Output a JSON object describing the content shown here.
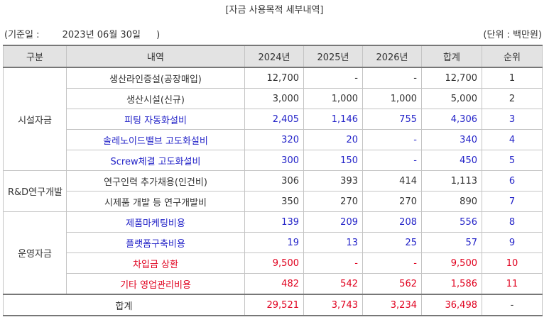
{
  "title": "[자금 사용목적 세부내역]",
  "reference": {
    "label": "(기준일 :",
    "date": "2023년 06월 30일",
    "close": ")"
  },
  "unit": "(단위 : 백만원)",
  "headers": [
    "구분",
    "내역",
    "2024년",
    "2025년",
    "2026년",
    "합계",
    "순위"
  ],
  "rows": [
    {
      "category": "시설자금",
      "item": "생산라인증설(공장매입)",
      "y2024": "12,700",
      "y2025": "-",
      "y2026": "-",
      "total": "12,700",
      "rank": "1",
      "style": "plain"
    },
    {
      "item": "생산시설(신규)",
      "y2024": "3,000",
      "y2025": "1,000",
      "y2026": "1,000",
      "total": "5,000",
      "rank": "2",
      "style": "plain"
    },
    {
      "item": "피팅 자동화설비",
      "y2024": "2,405",
      "y2025": "1,146",
      "y2026": "755",
      "total": "4,306",
      "rank": "3",
      "style": "blue"
    },
    {
      "item": "솔레노이드밸브 고도화설비",
      "y2024": "320",
      "y2025": "20",
      "y2026": "-",
      "total": "340",
      "rank": "4",
      "style": "blue"
    },
    {
      "item": "Screw체결 고도화설비",
      "y2024": "300",
      "y2025": "150",
      "y2026": "-",
      "total": "450",
      "rank": "5",
      "style": "blue"
    },
    {
      "category": "R&D연구개발",
      "item": "연구인력 추가채용(인건비)",
      "y2024": "306",
      "y2025": "393",
      "y2026": "414",
      "total": "1,113",
      "rank": "6",
      "style": "plain-bluerank"
    },
    {
      "item": "시제품 개발 등 연구개발비",
      "y2024": "350",
      "y2025": "270",
      "y2026": "270",
      "total": "890",
      "rank": "7",
      "style": "plain-bluerank"
    },
    {
      "category": "운영자금",
      "item": "제품마케팅비용",
      "y2024": "139",
      "y2025": "209",
      "y2026": "208",
      "total": "556",
      "rank": "8",
      "style": "blue"
    },
    {
      "item": "플랫폼구축비용",
      "y2024": "19",
      "y2025": "13",
      "y2026": "25",
      "total": "57",
      "rank": "9",
      "style": "blue"
    },
    {
      "item": "차입금 상환",
      "y2024": "9,500",
      "y2025": "-",
      "y2026": "-",
      "total": "9,500",
      "rank": "10",
      "style": "red"
    },
    {
      "item": "기타 영업관리비용",
      "y2024": "482",
      "y2025": "542",
      "y2026": "562",
      "total": "1,586",
      "rank": "11",
      "style": "red"
    }
  ],
  "total_row": {
    "label": "합계",
    "y2024": "29,521",
    "y2025": "3,743",
    "y2026": "3,234",
    "total": "36,498",
    "rank": "-",
    "style": "red"
  },
  "colors": {
    "blue": "#2323c8",
    "red": "#e0001e",
    "header_bg": "#e3e3e3",
    "border": "#c4c4c4"
  }
}
